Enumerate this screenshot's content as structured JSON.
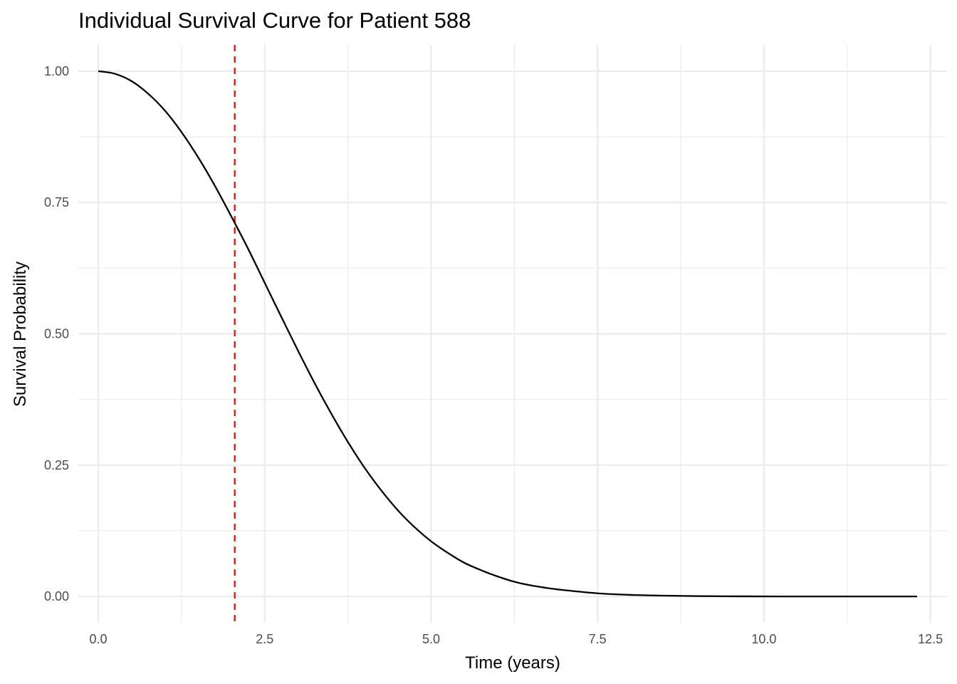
{
  "chart_data": {
    "type": "line",
    "title": "Individual Survival Curve for Patient 588",
    "xlabel": "Time (years)",
    "ylabel": "Survival Probability",
    "xlim": [
      -0.3,
      12.75
    ],
    "ylim": [
      -0.05,
      1.05
    ],
    "x_ticks": [
      0.0,
      2.5,
      5.0,
      7.5,
      10.0,
      12.5
    ],
    "x_tick_labels": [
      "0.0",
      "2.5",
      "5.0",
      "7.5",
      "10.0",
      "12.5"
    ],
    "y_ticks": [
      0.0,
      0.25,
      0.5,
      0.75,
      1.0
    ],
    "y_tick_labels": [
      "0.00",
      "0.25",
      "0.50",
      "0.75",
      "1.00"
    ],
    "grid": true,
    "series": [
      {
        "color": "#000000",
        "x": [
          0.0,
          0.25,
          0.5,
          0.75,
          1.0,
          1.25,
          1.5,
          1.75,
          2.0,
          2.25,
          2.5,
          2.75,
          3.0,
          3.25,
          3.5,
          3.75,
          4.0,
          4.25,
          4.5,
          4.75,
          5.0,
          5.25,
          5.5,
          5.75,
          6.0,
          6.25,
          6.5,
          6.75,
          7.0,
          7.5,
          8.0,
          8.5,
          9.0,
          9.5,
          10.0,
          10.5,
          11.0,
          11.5,
          12.0,
          12.3
        ],
        "y": [
          1.0,
          0.995,
          0.981,
          0.957,
          0.925,
          0.884,
          0.836,
          0.782,
          0.723,
          0.662,
          0.597,
          0.532,
          0.468,
          0.406,
          0.348,
          0.294,
          0.245,
          0.202,
          0.164,
          0.132,
          0.105,
          0.083,
          0.064,
          0.05,
          0.038,
          0.028,
          0.021,
          0.016,
          0.012,
          0.006,
          0.003,
          0.0015,
          0.0007,
          0.0003,
          0.0001,
          0.0,
          0.0,
          0.0,
          0.0,
          0.0
        ]
      }
    ],
    "reference_line": {
      "orientation": "vertical",
      "x": 2.05,
      "color": "#e41a1c",
      "style": "dashed"
    }
  }
}
